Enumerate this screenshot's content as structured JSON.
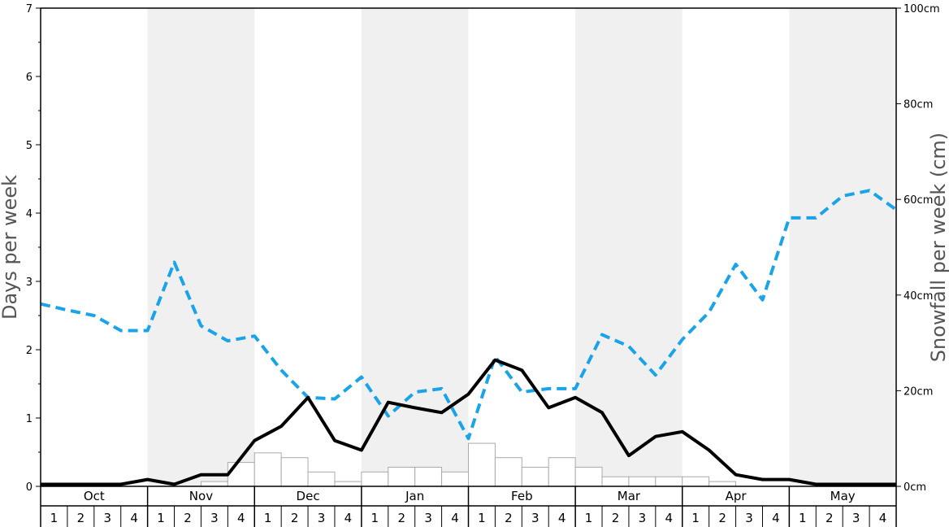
{
  "chart_data": {
    "type": "line",
    "y_left_label": "Days per week",
    "y_right_label": "Snowfall per week (cm)",
    "y_left_range": [
      0,
      7
    ],
    "y_left_ticks": [
      "0",
      "1",
      "2",
      "3",
      "4",
      "5",
      "6",
      "7"
    ],
    "y_right_range": [
      0,
      100
    ],
    "y_right_ticks": [
      "0cm",
      "20cm",
      "40cm",
      "60cm",
      "80cm",
      "100cm"
    ],
    "months": [
      "Oct",
      "Nov",
      "Dec",
      "Jan",
      "Feb",
      "Mar",
      "Apr",
      "May"
    ],
    "weeks": [
      "1",
      "2",
      "3",
      "4"
    ],
    "shaded_months": [
      "Nov",
      "Jan",
      "Mar",
      "May"
    ],
    "colors": {
      "shade": "#f0f0f0",
      "dashed_line": "#1aa3e8",
      "solid_line": "#000000",
      "bar_stroke": "#aaaaaa",
      "bar_fill": "#ffffff"
    },
    "series": [
      {
        "style": "solid",
        "axis": "left",
        "values": [
          0.03,
          0.03,
          0.03,
          0.03,
          0.1,
          0.03,
          0.17,
          0.17,
          0.67,
          0.88,
          1.3,
          0.67,
          0.53,
          1.23,
          1.15,
          1.08,
          1.35,
          1.85,
          1.7,
          1.15,
          1.3,
          1.08,
          0.45,
          0.73,
          0.8,
          0.53,
          0.17,
          0.1,
          0.1,
          0.03,
          0.03,
          0.03,
          0.03
        ]
      },
      {
        "style": "dashed",
        "axis": "left",
        "values": [
          2.67,
          2.58,
          2.5,
          2.28,
          2.28,
          3.28,
          2.35,
          2.13,
          2.2,
          1.7,
          1.3,
          1.28,
          1.6,
          1.03,
          1.38,
          1.43,
          0.7,
          1.9,
          1.38,
          1.43,
          1.43,
          2.22,
          2.05,
          1.63,
          2.15,
          2.55,
          3.25,
          2.73,
          3.93,
          3.93,
          4.25,
          4.33,
          4.05
        ]
      },
      {
        "style": "bars",
        "axis": "right",
        "values": [
          0,
          0,
          0,
          0,
          0,
          0,
          1,
          5,
          7,
          6,
          3,
          1,
          3,
          4,
          4,
          3,
          9,
          6,
          4,
          6,
          4,
          2,
          2,
          2,
          2,
          1,
          0,
          0,
          0,
          0,
          0,
          0
        ]
      }
    ]
  }
}
